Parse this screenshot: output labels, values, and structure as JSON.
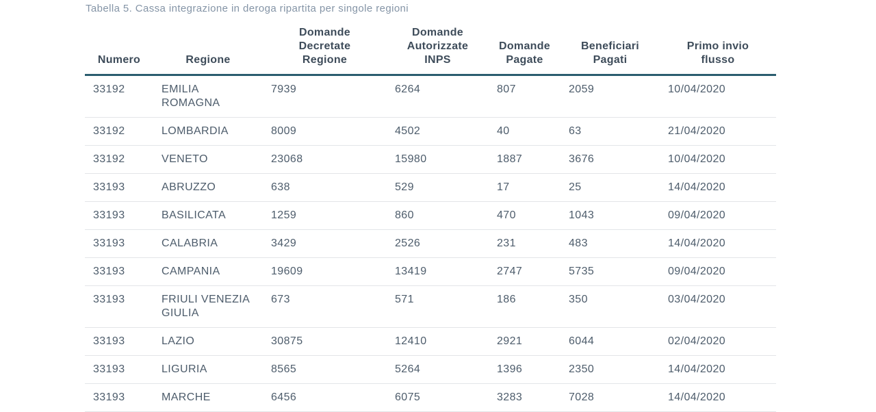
{
  "page": {
    "title": "Tabella 5. Cassa integrazione in deroga ripartita per singole regioni"
  },
  "colors": {
    "title_text": "#8494a6",
    "header_text": "#3e4c5a",
    "body_text": "#4d5c6b",
    "header_rule": "#2b5d6f",
    "row_separator": "#e3e5e8",
    "background": "#ffffff"
  },
  "table": {
    "columns": [
      {
        "key": "numero",
        "label": "Numero"
      },
      {
        "key": "regione",
        "label": "Regione"
      },
      {
        "key": "domande_decretate_regione",
        "label": "Domande Decretate Regione"
      },
      {
        "key": "domande_autorizzate_inps",
        "label": "Domande Autorizzate INPS"
      },
      {
        "key": "domande_pagate",
        "label": "Domande Pagate"
      },
      {
        "key": "beneficiari_pagati",
        "label": "Beneficiari Pagati"
      },
      {
        "key": "primo_invio_flusso",
        "label": "Primo invio flusso"
      }
    ],
    "rows": [
      [
        "33192",
        "EMILIA ROMAGNA",
        "7939",
        "6264",
        "807",
        "2059",
        "10/04/2020"
      ],
      [
        "33192",
        "LOMBARDIA",
        "8009",
        "4502",
        "40",
        "63",
        "21/04/2020"
      ],
      [
        "33192",
        "VENETO",
        "23068",
        "15980",
        "1887",
        "3676",
        "10/04/2020"
      ],
      [
        "33193",
        "ABRUZZO",
        "638",
        "529",
        "17",
        "25",
        "14/04/2020"
      ],
      [
        "33193",
        "BASILICATA",
        "1259",
        "860",
        "470",
        "1043",
        "09/04/2020"
      ],
      [
        "33193",
        "CALABRIA",
        "3429",
        "2526",
        "231",
        "483",
        "14/04/2020"
      ],
      [
        "33193",
        "CAMPANIA",
        "19609",
        "13419",
        "2747",
        "5735",
        "09/04/2020"
      ],
      [
        "33193",
        "FRIULI VENEZIA GIULIA",
        "673",
        "571",
        "186",
        "350",
        "03/04/2020"
      ],
      [
        "33193",
        "LAZIO",
        "30875",
        "12410",
        "2921",
        "6044",
        "02/04/2020"
      ],
      [
        "33193",
        "LIGURIA",
        "8565",
        "5264",
        "1396",
        "2350",
        "14/04/2020"
      ],
      [
        "33193",
        "MARCHE",
        "6456",
        "6075",
        "3283",
        "7028",
        "14/04/2020"
      ]
    ]
  }
}
